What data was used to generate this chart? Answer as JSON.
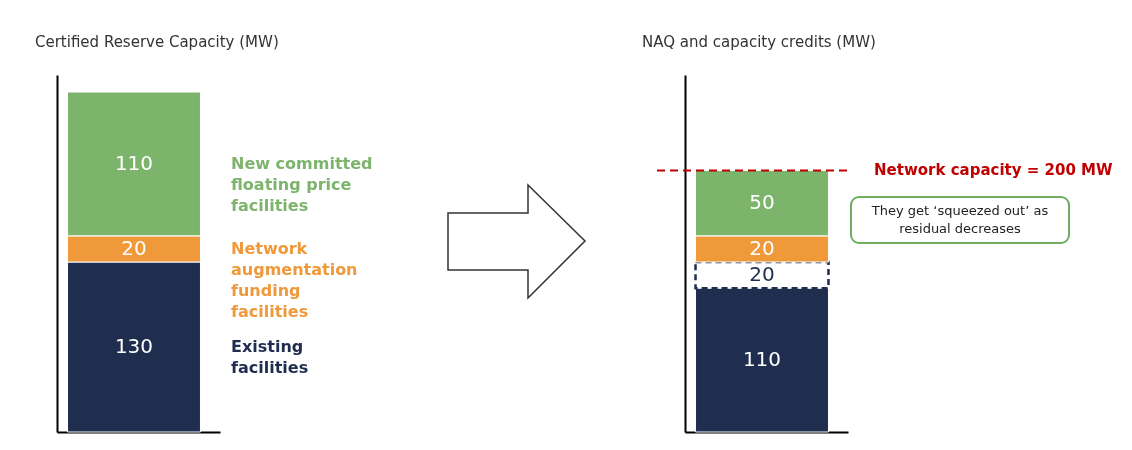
{
  "chart_data": [
    {
      "type": "bar",
      "title": "Certified Reserve Capacity (MW)",
      "categories": [
        null
      ],
      "stacked": true,
      "data_labels": true,
      "tick_labels": false,
      "series": [
        {
          "name": "Existing facilities",
          "color": "#1f2d4f",
          "values": [
            130
          ]
        },
        {
          "name": "Network augmentation funding facilities",
          "color": "#f0993a",
          "values": [
            20
          ]
        },
        {
          "name": "New committed floating price facilities",
          "color": "#7db46c",
          "values": [
            110
          ]
        }
      ]
    },
    {
      "type": "bar",
      "title": "NAQ and capacity credits (MW)",
      "categories": [
        null
      ],
      "stacked": true,
      "data_labels": true,
      "tick_labels": false,
      "series": [
        {
          "color": "#1f2d4f",
          "values": [
            110
          ]
        },
        {
          "color": "#ffffff",
          "line_style": "dashed",
          "values": [
            20
          ]
        },
        {
          "color": "#f0993a",
          "values": [
            20
          ]
        },
        {
          "color": "#7db46c",
          "values": [
            50
          ]
        }
      ],
      "ref_lines": [
        {
          "axis": "y",
          "value": 200,
          "label": "Network capacity = 200 MW",
          "color": "#c00000",
          "line_style": "dashed"
        }
      ],
      "annotations": [
        "They get ‘squeezed out’ as residual decreases"
      ]
    }
  ]
}
